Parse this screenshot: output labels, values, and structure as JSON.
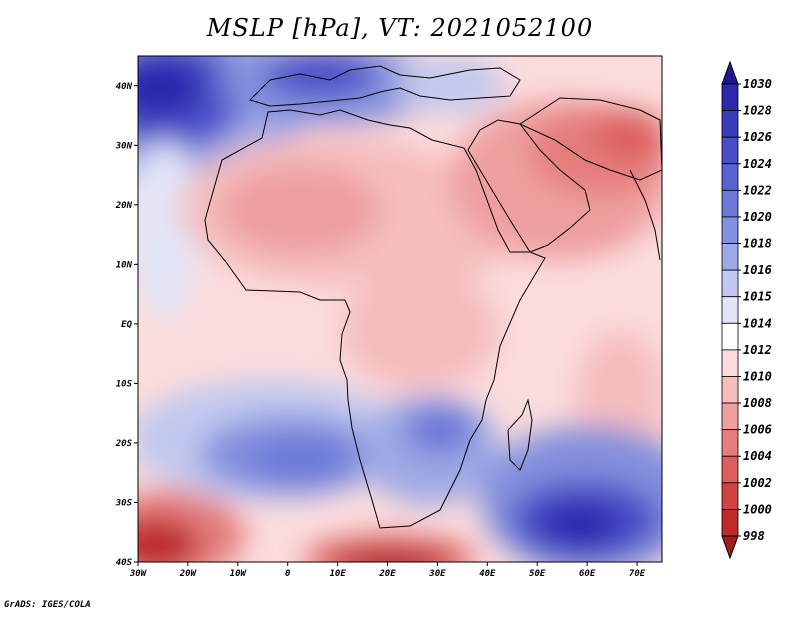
{
  "map": {
    "title": "MSLP [hPa], VT: 2021052100",
    "credit": "GrADS: IGES/COLA",
    "lon_range": [
      -30,
      75
    ],
    "lat_range": [
      -40,
      45
    ],
    "lon_ticks": [
      "30W",
      "20W",
      "10W",
      "0",
      "10E",
      "20E",
      "30E",
      "40E",
      "50E",
      "60E",
      "70E"
    ],
    "lat_ticks": [
      "40N",
      "30N",
      "20N",
      "10N",
      "EQ",
      "10S",
      "20S",
      "30S",
      "40S"
    ],
    "field": "Mean sea level pressure",
    "colorbar_labels": [
      "1030",
      "1028",
      "1026",
      "1024",
      "1022",
      "1020",
      "1018",
      "1016",
      "1015",
      "1014",
      "1012",
      "1010",
      "1008",
      "1006",
      "1004",
      "1002",
      "1000",
      "998"
    ],
    "colorbar_colors": [
      "#1f1596",
      "#2c28ad",
      "#3b3cbd",
      "#4a4fc8",
      "#5a63d0",
      "#6c79d8",
      "#8390dd",
      "#9ea9e5",
      "#c1c8ef",
      "#e2e5f7",
      "#ffffff",
      "#fbdcdc",
      "#f5bdbd",
      "#ee9f9f",
      "#e57d7d",
      "#dd5e5e",
      "#cf4343",
      "#bd2b2b",
      "#a31d1d"
    ],
    "colors": {
      "land_outline": "#000000",
      "ocean_base": "#fbdcdc"
    }
  }
}
